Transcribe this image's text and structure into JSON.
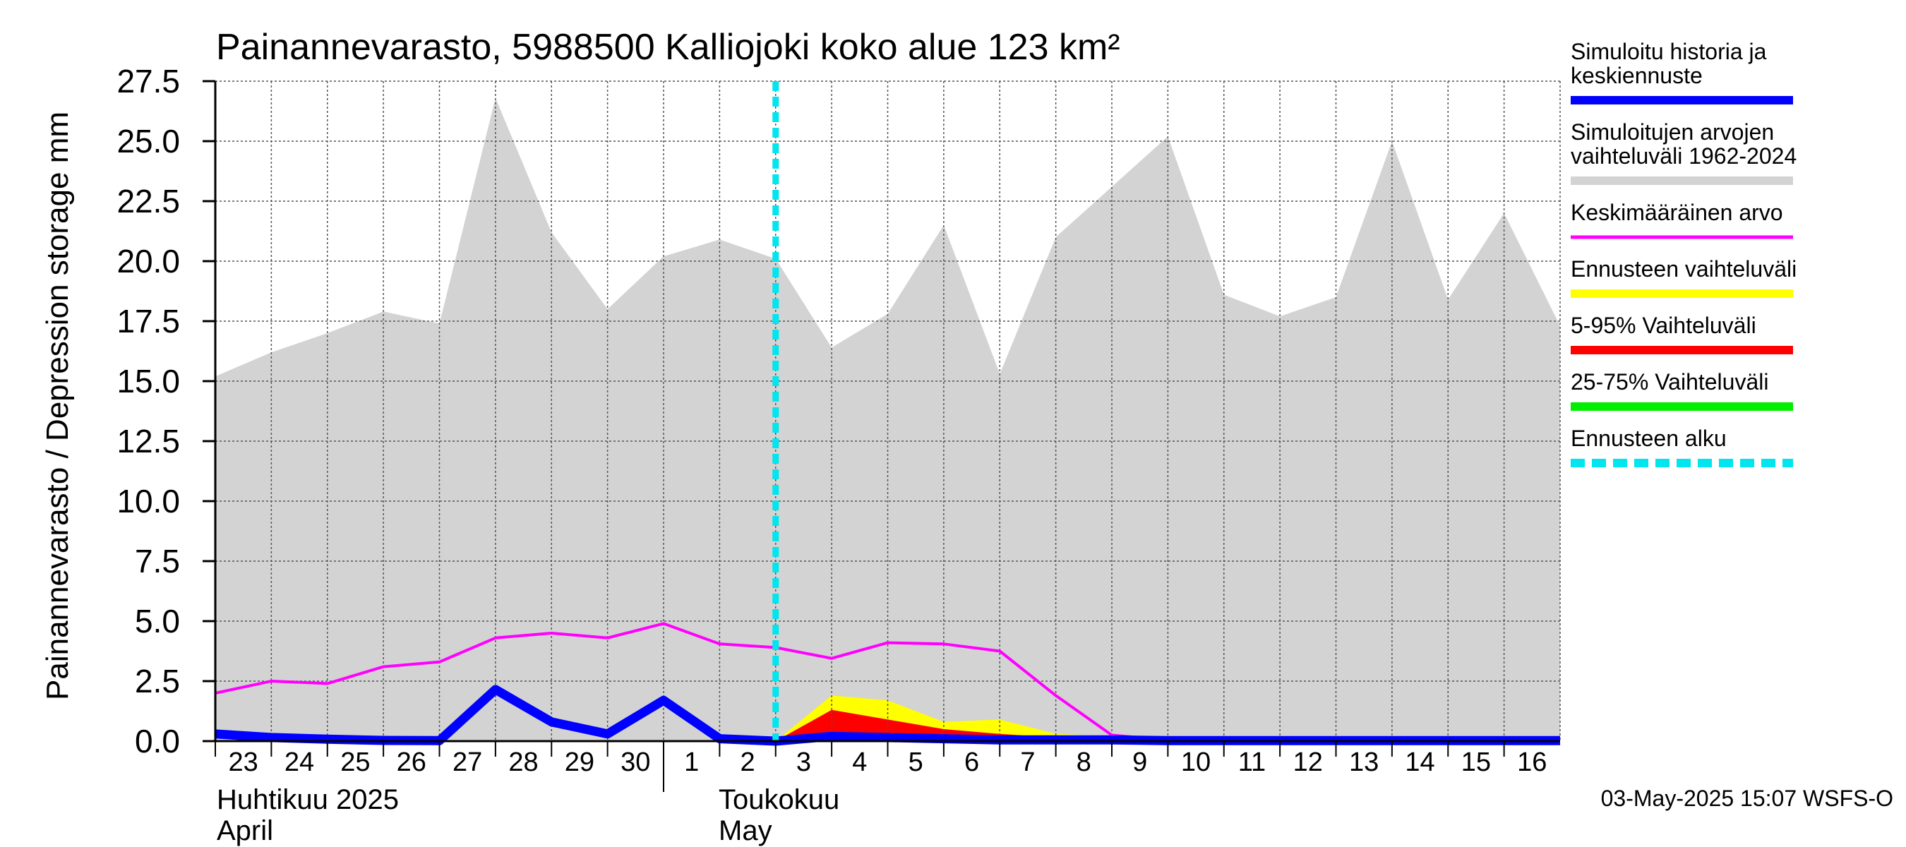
{
  "chart_data": {
    "type": "area",
    "title": "Painannevarasto, 5988500 Kalliojoki koko alue 123 km²",
    "ylabel": "Painannevarasto / Depression storage    mm",
    "ylim": [
      0,
      27.5
    ],
    "yticks": [
      0,
      2.5,
      5,
      7.5,
      10,
      12.5,
      15,
      17.5,
      20,
      22.5,
      25,
      27.5
    ],
    "ytick_labels": [
      "0.0",
      "2.5",
      "5.0",
      "7.5",
      "10.0",
      "12.5",
      "15.0",
      "17.5",
      "20.0",
      "22.5",
      "25.0",
      "27.5"
    ],
    "x": [
      "2025-04-23",
      "2025-04-24",
      "2025-04-25",
      "2025-04-26",
      "2025-04-27",
      "2025-04-28",
      "2025-04-29",
      "2025-04-30",
      "2025-05-01",
      "2025-05-02",
      "2025-05-03",
      "2025-05-04",
      "2025-05-05",
      "2025-05-06",
      "2025-05-07",
      "2025-05-08",
      "2025-05-09",
      "2025-05-10",
      "2025-05-11",
      "2025-05-12",
      "2025-05-13",
      "2025-05-14",
      "2025-05-15",
      "2025-05-16",
      "2025-05-17"
    ],
    "xlim": [
      "2025-04-23",
      "2025-05-17"
    ],
    "xtick_labels": [
      "23",
      "24",
      "25",
      "26",
      "27",
      "28",
      "29",
      "30",
      "1",
      "2",
      "3",
      "4",
      "5",
      "6",
      "7",
      "8",
      "9",
      "10",
      "11",
      "12",
      "13",
      "14",
      "15",
      "16"
    ],
    "month_labels": [
      {
        "line1": "Huhtikuu  2025",
        "line2": "April"
      },
      {
        "line1": "Toukokuu",
        "line2": "May"
      }
    ],
    "grid": true,
    "forecast_start": "2025-05-03",
    "series": [
      {
        "name": "Simuloitujen arvojen vaihteluväli 1962-2024",
        "kind": "band",
        "color": "#d3d3d3",
        "x": [
          "2025-04-23",
          "2025-04-24",
          "2025-04-25",
          "2025-04-26",
          "2025-04-27",
          "2025-04-28",
          "2025-04-29",
          "2025-04-30",
          "2025-05-01",
          "2025-05-02",
          "2025-05-03",
          "2025-05-04",
          "2025-05-05",
          "2025-05-06",
          "2025-05-07",
          "2025-05-08",
          "2025-05-09",
          "2025-05-10",
          "2025-05-11",
          "2025-05-12",
          "2025-05-13",
          "2025-05-14",
          "2025-05-15",
          "2025-05-16",
          "2025-05-17"
        ],
        "lower": [
          0,
          0,
          0,
          0,
          0,
          0,
          0,
          0,
          0,
          0,
          0,
          0,
          0,
          0,
          0,
          0,
          0,
          0,
          0,
          0,
          0,
          0,
          0,
          0,
          0
        ],
        "upper": [
          15.2,
          16.2,
          17.0,
          17.9,
          17.4,
          26.8,
          21.2,
          18.0,
          20.2,
          20.9,
          20.1,
          16.4,
          17.8,
          21.5,
          15.3,
          21.0,
          23.1,
          25.2,
          18.6,
          17.7,
          18.5,
          25.0,
          18.4,
          22.0,
          17.3
        ]
      },
      {
        "name": "Ennusteen vaihteluväli",
        "kind": "band",
        "color": "#ffff00",
        "x": [
          "2025-05-03",
          "2025-05-04",
          "2025-05-05",
          "2025-05-06",
          "2025-05-07",
          "2025-05-08",
          "2025-05-09",
          "2025-05-10",
          "2025-05-11",
          "2025-05-12",
          "2025-05-13",
          "2025-05-14",
          "2025-05-15",
          "2025-05-16",
          "2025-05-17"
        ],
        "lower": [
          0,
          0,
          0,
          0,
          0,
          0,
          0,
          0,
          0,
          0,
          0,
          0,
          0,
          0,
          0
        ],
        "upper": [
          0.0,
          1.9,
          1.7,
          0.8,
          0.9,
          0.3,
          0.2,
          0.1,
          0.1,
          0.1,
          0.1,
          0.1,
          0.1,
          0.1,
          0.1
        ]
      },
      {
        "name": "5-95% Vaihteluväli",
        "kind": "band",
        "color": "#ff0000",
        "x": [
          "2025-05-03",
          "2025-05-04",
          "2025-05-05",
          "2025-05-06",
          "2025-05-07",
          "2025-05-08",
          "2025-05-09",
          "2025-05-10",
          "2025-05-11",
          "2025-05-12",
          "2025-05-13",
          "2025-05-14",
          "2025-05-15",
          "2025-05-16",
          "2025-05-17"
        ],
        "lower": [
          0,
          0,
          0,
          0,
          0,
          0,
          0,
          0,
          0,
          0,
          0,
          0,
          0,
          0,
          0
        ],
        "upper": [
          0.0,
          1.3,
          0.9,
          0.5,
          0.3,
          0.15,
          0.1,
          0.05,
          0.05,
          0.05,
          0.05,
          0.05,
          0.05,
          0.05,
          0.05
        ]
      },
      {
        "name": "25-75% Vaihteluväli",
        "kind": "band",
        "color": "#00ee00",
        "x": [
          "2025-05-03",
          "2025-05-04",
          "2025-05-05",
          "2025-05-06",
          "2025-05-07",
          "2025-05-08",
          "2025-05-09",
          "2025-05-10",
          "2025-05-11",
          "2025-05-12",
          "2025-05-13",
          "2025-05-14",
          "2025-05-15",
          "2025-05-16",
          "2025-05-17"
        ],
        "lower": [
          0,
          0,
          0,
          0,
          0,
          0,
          0,
          0,
          0,
          0,
          0,
          0,
          0,
          0,
          0
        ],
        "upper": [
          0.0,
          0.35,
          0.3,
          0.15,
          0.1,
          0.05,
          0.05,
          0.02,
          0.02,
          0.02,
          0.02,
          0.02,
          0.02,
          0.02,
          0.02
        ]
      },
      {
        "name": "Keskimääräinen arvo",
        "kind": "line",
        "color": "#ff00ff",
        "x": [
          "2025-04-23",
          "2025-04-24",
          "2025-04-25",
          "2025-04-26",
          "2025-04-27",
          "2025-04-28",
          "2025-04-29",
          "2025-04-30",
          "2025-05-01",
          "2025-05-02",
          "2025-05-03",
          "2025-05-04",
          "2025-05-05",
          "2025-05-06",
          "2025-05-07",
          "2025-05-08",
          "2025-05-09",
          "2025-05-10",
          "2025-05-11",
          "2025-05-12",
          "2025-05-13",
          "2025-05-14",
          "2025-05-15",
          "2025-05-16",
          "2025-05-17"
        ],
        "values": [
          2.0,
          2.5,
          2.4,
          3.1,
          3.3,
          4.3,
          4.5,
          4.3,
          4.9,
          4.05,
          3.9,
          3.45,
          4.1,
          4.05,
          3.75,
          1.9,
          0.25,
          0.05,
          0.02,
          0.02,
          0.02,
          0.02,
          0.02,
          0.02,
          0.02
        ]
      },
      {
        "name": "Simuloitu historia ja keskiennuste",
        "kind": "line",
        "color": "#0000ff",
        "x": [
          "2025-04-23",
          "2025-04-24",
          "2025-04-25",
          "2025-04-26",
          "2025-04-27",
          "2025-04-28",
          "2025-04-29",
          "2025-04-30",
          "2025-05-01",
          "2025-05-02",
          "2025-05-03",
          "2025-05-04",
          "2025-05-05",
          "2025-05-06",
          "2025-05-07",
          "2025-05-08",
          "2025-05-09",
          "2025-05-10",
          "2025-05-11",
          "2025-05-12",
          "2025-05-13",
          "2025-05-14",
          "2025-05-15",
          "2025-05-16",
          "2025-05-17"
        ],
        "values": [
          0.3,
          0.15,
          0.08,
          0.03,
          0.02,
          2.15,
          0.8,
          0.3,
          1.7,
          0.1,
          0.0,
          0.2,
          0.15,
          0.1,
          0.05,
          0.05,
          0.05,
          0.02,
          0.02,
          0.02,
          0.02,
          0.02,
          0.02,
          0.02,
          0.02
        ]
      }
    ],
    "legend": {
      "placement": "right",
      "entries": [
        {
          "label_lines": [
            "Simuloitu historia ja",
            "keskiennuste"
          ],
          "color": "#0000ff",
          "style": "thick"
        },
        {
          "label_lines": [
            "Simuloitujen arvojen",
            "vaihteluväli 1962-2024"
          ],
          "color": "#d3d3d3",
          "style": "thick"
        },
        {
          "label_lines": [
            "Keskimääräinen arvo"
          ],
          "color": "#ff00ff",
          "style": "thin"
        },
        {
          "label_lines": [
            "Ennusteen vaihteluväli"
          ],
          "color": "#ffff00",
          "style": "thick"
        },
        {
          "label_lines": [
            "5-95% Vaihteluväli"
          ],
          "color": "#ff0000",
          "style": "thick"
        },
        {
          "label_lines": [
            "25-75% Vaihteluväli"
          ],
          "color": "#00ee00",
          "style": "thick"
        },
        {
          "label_lines": [
            "Ennusteen alku"
          ],
          "color": "#00e5ee",
          "style": "dashed"
        }
      ]
    },
    "footer": "03-May-2025 15:07 WSFS-O"
  }
}
